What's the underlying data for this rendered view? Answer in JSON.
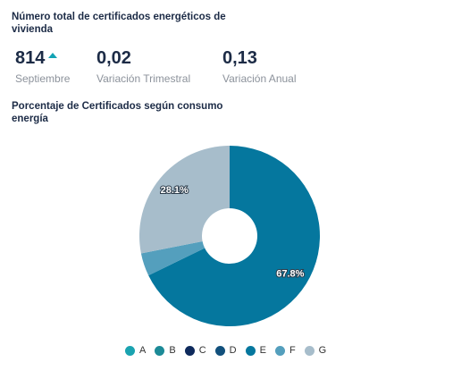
{
  "header": {
    "title": "Número total de certificados energéticos de vivienda"
  },
  "stats": [
    {
      "value": "814",
      "label": "Septiembre",
      "trend": "up"
    },
    {
      "value": "0,02",
      "label": "Variación Trimestral"
    },
    {
      "value": "0,13",
      "label": "Variación Anual"
    }
  ],
  "chart_section": {
    "title": "Porcentaje de Certificados según consumo energía"
  },
  "colors": {
    "trend_up": "#13a3b4",
    "title_text": "#1c2b46",
    "label_text": "#8c929b"
  },
  "chart_data": {
    "type": "pie",
    "title": "Porcentaje de Certificados según consumo energía",
    "series": [
      {
        "name": "A",
        "value": 0.0,
        "color": "#1aa3b0"
      },
      {
        "name": "B",
        "value": 0.0,
        "color": "#1c8a97"
      },
      {
        "name": "C",
        "value": 0.0,
        "color": "#0e2a5c"
      },
      {
        "name": "D",
        "value": 0.0,
        "color": "#11507c"
      },
      {
        "name": "E",
        "value": 67.8,
        "color": "#05779e"
      },
      {
        "name": "F",
        "value": 4.1,
        "color": "#549fbd"
      },
      {
        "name": "G",
        "value": 28.1,
        "color": "#a7bdcb"
      }
    ],
    "data_labels": [
      "67.8%",
      "28.1%"
    ],
    "donut": true,
    "legend_position": "bottom"
  }
}
